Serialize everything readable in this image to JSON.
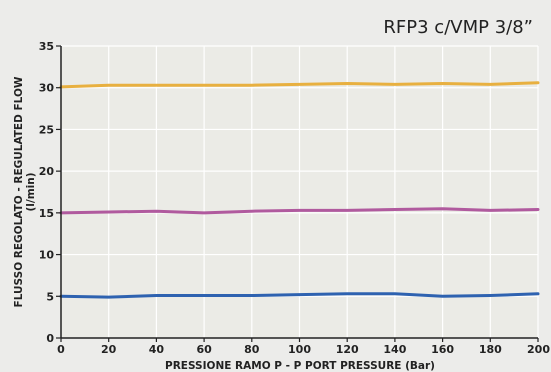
{
  "chart_data": {
    "type": "line",
    "title": "RFP3 c/VMP 3/8”",
    "xlabel": "PRESSIONE RAMO P - P PORT PRESSURE (Bar)",
    "ylabel": "FLUSSO REGOLATO - REGULATED FLOW",
    "ylabel_unit": "(l/min)",
    "xlim": [
      0,
      200
    ],
    "ylim": [
      0,
      35
    ],
    "x_ticks": [
      "0",
      "20",
      "40",
      "60",
      "80",
      "100",
      "120",
      "140",
      "160",
      "180",
      "200"
    ],
    "y_ticks": [
      "0",
      "5",
      "10",
      "15",
      "20",
      "25",
      "30",
      "35"
    ],
    "grid": true,
    "x": [
      0,
      20,
      40,
      60,
      80,
      100,
      120,
      140,
      160,
      180,
      200
    ],
    "series": [
      {
        "color": "#e8b040",
        "values": [
          30.1,
          30.3,
          30.3,
          30.3,
          30.3,
          30.4,
          30.5,
          30.4,
          30.5,
          30.4,
          30.6
        ]
      },
      {
        "color": "#b05a9e",
        "values": [
          15.0,
          15.1,
          15.2,
          15.0,
          15.2,
          15.3,
          15.3,
          15.4,
          15.5,
          15.3,
          15.4
        ]
      },
      {
        "color": "#2e62b0",
        "values": [
          5.0,
          4.9,
          5.1,
          5.1,
          5.1,
          5.2,
          5.3,
          5.3,
          5.0,
          5.1,
          5.3
        ]
      }
    ]
  }
}
